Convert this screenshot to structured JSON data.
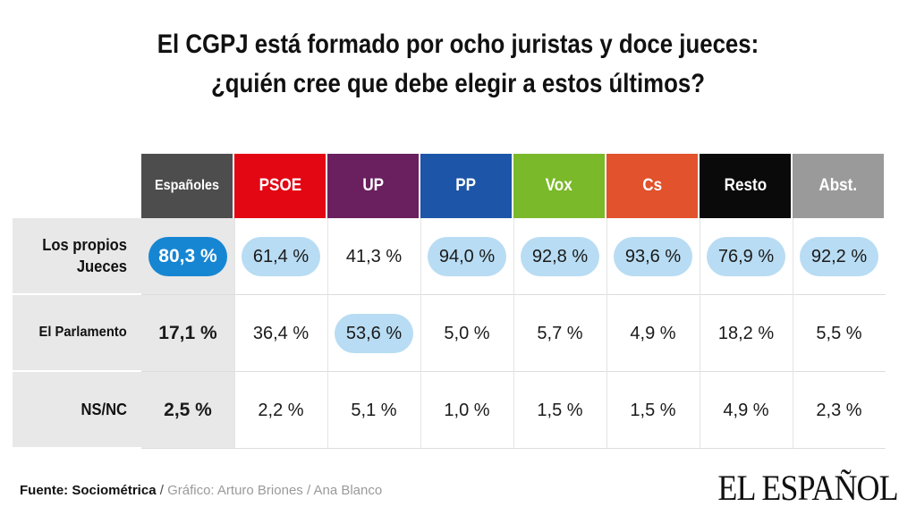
{
  "chart_data": {
    "type": "table",
    "title_line1": "El CGPJ está formado por ocho juristas y doce jueces:",
    "title_line2": "¿quién cree que debe elegir a estos últimos?",
    "columns": [
      {
        "label": "Españoles",
        "color": "#4d4d4d"
      },
      {
        "label": "PSOE",
        "color": "#e30613"
      },
      {
        "label": "UP",
        "color": "#6a1f5e"
      },
      {
        "label": "PP",
        "color": "#1d56a8"
      },
      {
        "label": "Vox",
        "color": "#7ab929"
      },
      {
        "label": "Cs",
        "color": "#e1522d"
      },
      {
        "label": "Resto",
        "color": "#0a0a0a"
      },
      {
        "label": "Abst.",
        "color": "#9a9a9a"
      }
    ],
    "rows": [
      {
        "label": "Los propios Jueces",
        "values": [
          "80,3 %",
          "61,4 %",
          "41,3 %",
          "94,0 %",
          "92,8 %",
          "93,6 %",
          "76,9 %",
          "92,2 %"
        ],
        "highlight": [
          true,
          true,
          false,
          true,
          true,
          true,
          true,
          true
        ]
      },
      {
        "label": "El Parlamento",
        "values": [
          "17,1 %",
          "36,4 %",
          "53,6 %",
          "5,0 %",
          "5,7 %",
          "4,9 %",
          "18,2 %",
          "5,5 %"
        ],
        "highlight": [
          false,
          false,
          true,
          false,
          false,
          false,
          false,
          false
        ]
      },
      {
        "label": "NS/NC",
        "values": [
          "2,5 %",
          "2,2 %",
          "5,1 %",
          "1,0 %",
          "1,5 %",
          "1,5 %",
          "4,9 %",
          "2,3 %"
        ],
        "highlight": [
          false,
          false,
          false,
          false,
          false,
          false,
          false,
          false
        ]
      }
    ]
  },
  "footer": {
    "source": "Fuente: Sociométrica",
    "separator": " / ",
    "credit": "Gráfico: Arturo Briones / Ana Blanco"
  },
  "logo": "EL ESPAÑOL",
  "colors": {
    "highlight_light": "#b8dcf3",
    "highlight_strong": "#1686d3",
    "first_column_bg": "#e8e8e8",
    "row_label_bg": "#e8e8e8"
  }
}
